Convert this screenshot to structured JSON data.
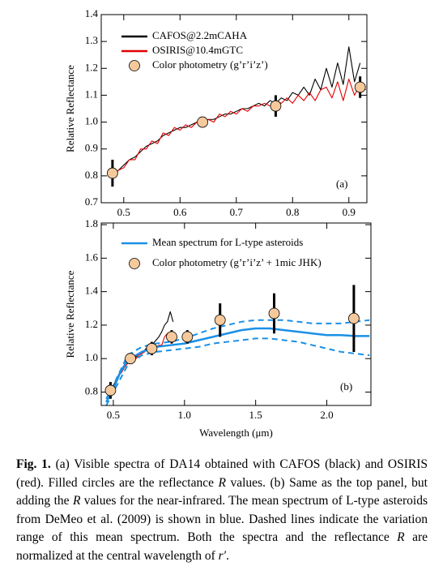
{
  "chart_data": [
    {
      "type": "line",
      "xlim": [
        0.46,
        0.932
      ],
      "ylim": [
        0.7,
        1.4
      ],
      "xticks": [
        0.5,
        0.6,
        0.7,
        0.8,
        0.9
      ],
      "yticks": [
        0.7,
        0.8,
        0.9,
        {
          "value": 1,
          "label": "1.0"
        },
        1.1,
        1.2,
        1.3,
        1.4
      ],
      "ylabel": "Relative Reflectance",
      "panel_label": "(a)",
      "legend": "upper left",
      "series": [
        {
          "name": "CAFOS@2.2mCAHA",
          "color": "#000000",
          "style": "line",
          "x": [
            0.48,
            0.49,
            0.5,
            0.51,
            0.52,
            0.53,
            0.54,
            0.55,
            0.56,
            0.57,
            0.58,
            0.59,
            0.6,
            0.61,
            0.62,
            0.63,
            0.64,
            0.65,
            0.66,
            0.67,
            0.68,
            0.69,
            0.7,
            0.71,
            0.72,
            0.73,
            0.74,
            0.75,
            0.76,
            0.77,
            0.78,
            0.79,
            0.8,
            0.81,
            0.82,
            0.83,
            0.84,
            0.85,
            0.86,
            0.87,
            0.88,
            0.89,
            0.9,
            0.91,
            0.92
          ],
          "values": [
            0.8,
            0.82,
            0.84,
            0.86,
            0.87,
            0.89,
            0.91,
            0.92,
            0.93,
            0.95,
            0.96,
            0.97,
            0.98,
            0.98,
            0.99,
            1.0,
            1.0,
            1.01,
            1.01,
            1.02,
            1.03,
            1.03,
            1.04,
            1.05,
            1.05,
            1.06,
            1.07,
            1.06,
            1.08,
            1.07,
            1.09,
            1.08,
            1.11,
            1.1,
            1.13,
            1.1,
            1.16,
            1.12,
            1.2,
            1.13,
            1.22,
            1.14,
            1.28,
            1.15,
            1.22
          ]
        },
        {
          "name": "OSIRIS@10.4mGTC",
          "color": "#e00000",
          "style": "line",
          "x": [
            0.48,
            0.49,
            0.5,
            0.51,
            0.52,
            0.53,
            0.54,
            0.55,
            0.56,
            0.57,
            0.58,
            0.59,
            0.6,
            0.61,
            0.62,
            0.63,
            0.64,
            0.65,
            0.66,
            0.67,
            0.68,
            0.69,
            0.7,
            0.71,
            0.72,
            0.73,
            0.74,
            0.75,
            0.76,
            0.77,
            0.78,
            0.79,
            0.8,
            0.81,
            0.82,
            0.83,
            0.84,
            0.85,
            0.86,
            0.87,
            0.88,
            0.89,
            0.9,
            0.91,
            0.92,
            0.93
          ],
          "values": [
            0.79,
            0.82,
            0.83,
            0.86,
            0.86,
            0.9,
            0.9,
            0.93,
            0.92,
            0.96,
            0.95,
            0.98,
            0.97,
            0.99,
            0.98,
            1.0,
            0.99,
            1.01,
            1.0,
            1.03,
            1.02,
            1.04,
            1.03,
            1.05,
            1.04,
            1.06,
            1.06,
            1.07,
            1.06,
            1.08,
            1.07,
            1.09,
            1.07,
            1.1,
            1.08,
            1.11,
            1.08,
            1.12,
            1.13,
            1.09,
            1.15,
            1.08,
            1.16,
            1.1,
            1.14,
            1.12
          ]
        },
        {
          "name": "Color photometry (g’r’i’z’)",
          "color": "#f6c99c",
          "style": "markers",
          "x": [
            0.48,
            0.64,
            0.77,
            0.92
          ],
          "values": [
            0.81,
            1.0,
            1.06,
            1.13
          ],
          "errors": [
            0.05,
            null,
            0.04,
            0.04
          ]
        }
      ]
    },
    {
      "type": "line",
      "xlim": [
        0.415,
        2.31
      ],
      "ylim": [
        0.72,
        1.81
      ],
      "xticks": [
        0.5,
        {
          "value": 1,
          "label": "1.0"
        },
        1.5,
        {
          "value": 2,
          "label": "2.0"
        }
      ],
      "yticks": [
        0.8,
        {
          "value": 1,
          "label": "1.0"
        },
        1.2,
        1.4,
        1.6,
        1.8
      ],
      "xlabel": "Wavelength (μm)",
      "ylabel": "Relative Reflectance",
      "panel_label": "(b)",
      "legend": "upper left",
      "series": [
        {
          "color": "#000000",
          "style": "line",
          "x": [
            0.48,
            0.5,
            0.52,
            0.54,
            0.56,
            0.58,
            0.6,
            0.62,
            0.64,
            0.66,
            0.68,
            0.7,
            0.72,
            0.74,
            0.76,
            0.78,
            0.8,
            0.82,
            0.84,
            0.86,
            0.88,
            0.9,
            0.92
          ],
          "values": [
            0.8,
            0.84,
            0.87,
            0.91,
            0.93,
            0.96,
            0.98,
            0.99,
            1.0,
            1.01,
            1.03,
            1.04,
            1.05,
            1.07,
            1.08,
            1.09,
            1.11,
            1.13,
            1.16,
            1.2,
            1.22,
            1.28,
            1.22
          ]
        },
        {
          "color": "#e00000",
          "style": "line",
          "x": [
            0.48,
            0.5,
            0.52,
            0.54,
            0.56,
            0.58,
            0.6,
            0.62,
            0.64,
            0.66,
            0.68,
            0.7,
            0.72,
            0.74,
            0.76,
            0.78,
            0.8,
            0.82,
            0.84,
            0.86,
            0.88,
            0.9,
            0.92
          ],
          "values": [
            0.79,
            0.83,
            0.86,
            0.9,
            0.92,
            0.95,
            0.97,
            0.98,
            0.99,
            1.0,
            1.02,
            1.03,
            1.04,
            1.06,
            1.06,
            1.07,
            1.07,
            1.08,
            1.08,
            1.13,
            1.15,
            1.16,
            1.14
          ]
        },
        {
          "name": "Mean spectrum for L-type asteroids",
          "color": "#1a90e6",
          "style": "line",
          "x": [
            0.45,
            0.5,
            0.55,
            0.6,
            0.7,
            0.8,
            0.9,
            1.0,
            1.1,
            1.2,
            1.3,
            1.4,
            1.5,
            1.6,
            1.7,
            1.8,
            1.9,
            2.0,
            2.1,
            2.2,
            2.3
          ],
          "values": [
            0.74,
            0.82,
            0.92,
            0.99,
            1.04,
            1.07,
            1.08,
            1.09,
            1.11,
            1.13,
            1.15,
            1.17,
            1.18,
            1.18,
            1.17,
            1.16,
            1.15,
            1.14,
            1.14,
            1.135,
            1.135
          ]
        },
        {
          "color": "#1a90e6",
          "style": "dashed",
          "x": [
            0.45,
            0.5,
            0.6,
            0.7,
            0.8,
            0.9,
            1.0,
            1.1,
            1.2,
            1.3,
            1.4,
            1.5,
            1.6,
            1.7,
            1.8,
            1.9,
            2.0,
            2.1,
            2.2,
            2.3
          ],
          "values": [
            0.76,
            0.84,
            1.02,
            1.07,
            1.09,
            1.1,
            1.12,
            1.15,
            1.18,
            1.2,
            1.22,
            1.23,
            1.23,
            1.23,
            1.22,
            1.21,
            1.21,
            1.21,
            1.22,
            1.23
          ]
        },
        {
          "color": "#1a90e6",
          "style": "dashed",
          "x": [
            0.45,
            0.5,
            0.6,
            0.7,
            0.8,
            0.9,
            1.0,
            1.1,
            1.2,
            1.3,
            1.4,
            1.5,
            1.6,
            1.7,
            1.8,
            1.9,
            2.0,
            2.1,
            2.2,
            2.3
          ],
          "values": [
            0.72,
            0.8,
            0.96,
            1.02,
            1.04,
            1.05,
            1.06,
            1.07,
            1.09,
            1.1,
            1.11,
            1.12,
            1.12,
            1.11,
            1.1,
            1.08,
            1.06,
            1.04,
            1.03,
            1.02
          ]
        },
        {
          "name": "Color photometry (g’r’i’z’ + 1mic JHK)",
          "color": "#f6c99c",
          "style": "markers",
          "x": [
            0.48,
            0.62,
            0.77,
            0.91,
            1.02,
            1.25,
            1.63,
            2.19
          ],
          "values": [
            0.81,
            1.0,
            1.06,
            1.13,
            1.13,
            1.23,
            1.27,
            1.24
          ],
          "errors": [
            0.05,
            null,
            0.04,
            0.04,
            0.04,
            0.1,
            0.12,
            0.2
          ]
        }
      ]
    }
  ],
  "caption": {
    "label": "Fig. 1.",
    "parts": [
      {
        "text": " (a) Visible spectra of DA14 obtained with CAFOS (black) and OSIRIS (red). Filled circles are the reflectance "
      },
      {
        "text": "R",
        "italic": true
      },
      {
        "text": " values. (b) Same as the top panel, but adding the "
      },
      {
        "text": "R",
        "italic": true
      },
      {
        "text": " values for the near-infrared. The mean spectrum of L-type asteroids from DeMeo et al. (2009) is shown in blue. Dashed lines indicate the variation range of this mean spectrum. Both the spectra and the reflectance "
      },
      {
        "text": "R",
        "italic": true
      },
      {
        "text": " are normalized at the central wavelength of "
      },
      {
        "text": "r′",
        "italic": true
      },
      {
        "text": "."
      }
    ]
  }
}
